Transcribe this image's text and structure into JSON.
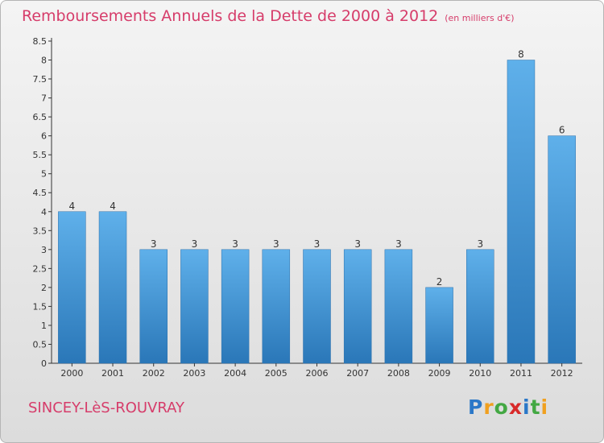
{
  "header": {
    "title": "Remboursements Annuels de la Dette de 2000 à 2012",
    "unit": "(en milliers d'€)"
  },
  "footer": {
    "place": "SINCEY-LèS-ROUVRAY",
    "logo": [
      "P",
      "r",
      "o",
      "x",
      "i",
      "t",
      "i"
    ],
    "logo_colors": [
      "#2b78c8",
      "#f0a020",
      "#43a843",
      "#d82a2a",
      "#2b78c8",
      "#43a843",
      "#f0a020"
    ]
  },
  "chart_data": {
    "type": "bar",
    "title": "Remboursements Annuels de la Dette de 2000 à 2012",
    "categories": [
      "2000",
      "2001",
      "2002",
      "2003",
      "2004",
      "2005",
      "2006",
      "2007",
      "2008",
      "2009",
      "2010",
      "2011",
      "2012"
    ],
    "values": [
      4,
      4,
      3,
      3,
      3,
      3,
      3,
      3,
      3,
      2,
      3,
      8,
      6
    ],
    "data_labels": [
      "4",
      "4",
      "3",
      "3",
      "3",
      "3",
      "3",
      "3",
      "3",
      "2",
      "3",
      "8",
      "6"
    ],
    "yticks": [
      "0",
      "0.5",
      "1",
      "1.5",
      "2",
      "2.5",
      "3",
      "3.5",
      "4",
      "4.5",
      "5",
      "5.5",
      "6",
      "6.5",
      "7",
      "7.5",
      "8",
      "8.5"
    ],
    "ylim": [
      0,
      8.5
    ],
    "grid": false,
    "bar_color": "#3f94d6"
  }
}
